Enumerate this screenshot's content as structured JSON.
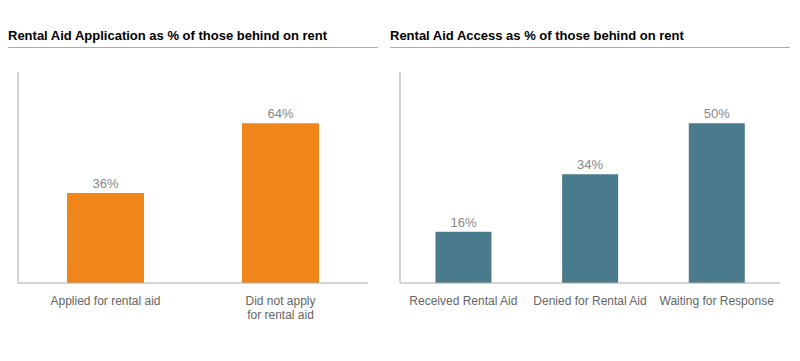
{
  "chart_data": [
    {
      "type": "bar",
      "title": "Rental Aid Application as % of those behind on rent",
      "categories": [
        "Applied for rental aid",
        "Did not apply\nfor rental aid"
      ],
      "values": [
        36,
        64
      ],
      "value_labels": [
        "36%",
        "64%"
      ],
      "color": "#F0851A",
      "ylim": [
        0,
        84.48
      ],
      "grid": false,
      "data_labels": true,
      "tick_labels": "x"
    },
    {
      "type": "bar",
      "title": "Rental Aid Access as % of those behind on rent",
      "categories": [
        "Received Rental Aid",
        "Denied for Rental Aid",
        "Waiting for Response"
      ],
      "values": [
        16,
        34,
        50
      ],
      "value_labels": [
        "16%",
        "34%",
        "50%"
      ],
      "color": "#4a7b8c",
      "ylim": [
        0,
        66
      ],
      "grid": false,
      "data_labels": true,
      "tick_labels": "x"
    }
  ]
}
